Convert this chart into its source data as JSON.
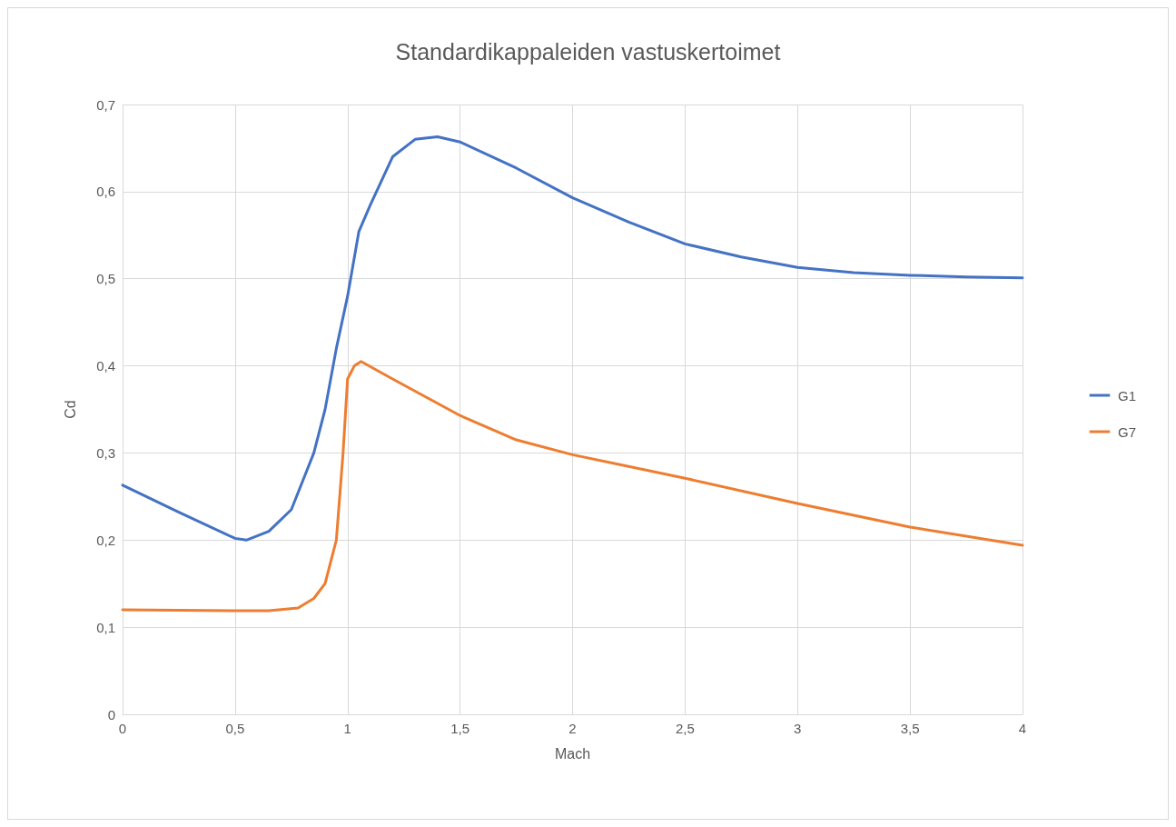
{
  "chart_data": {
    "type": "line",
    "title": "Standardikappaleiden vastuskertoimet",
    "xlabel": "Mach",
    "ylabel": "Cd",
    "xlim": [
      0,
      4
    ],
    "xticks": [
      {
        "value": 0,
        "label": "0"
      },
      {
        "value": 0.5,
        "label": "0,5"
      },
      {
        "value": 1,
        "label": "1"
      },
      {
        "value": 1.5,
        "label": "1,5"
      },
      {
        "value": 2,
        "label": "2"
      },
      {
        "value": 2.5,
        "label": "2,5"
      },
      {
        "value": 3,
        "label": "3"
      },
      {
        "value": 3.5,
        "label": "3,5"
      },
      {
        "value": 4,
        "label": "4"
      }
    ],
    "ylim": [
      0,
      0.7
    ],
    "yticks": [
      {
        "value": 0,
        "label": "0"
      },
      {
        "value": 0.1,
        "label": "0,1"
      },
      {
        "value": 0.2,
        "label": "0,2"
      },
      {
        "value": 0.3,
        "label": "0,3"
      },
      {
        "value": 0.4,
        "label": "0,4"
      },
      {
        "value": 0.5,
        "label": "0,5"
      },
      {
        "value": 0.6,
        "label": "0,6"
      },
      {
        "value": 0.7,
        "label": "0,7"
      }
    ],
    "grid": true,
    "legend": "right",
    "marker": "none",
    "line_style": "solid",
    "series": [
      {
        "name": "G1",
        "color": "#4472c4",
        "x": [
          0,
          0.25,
          0.5,
          0.55,
          0.65,
          0.75,
          0.85,
          0.9,
          0.95,
          1.0,
          1.05,
          1.1,
          1.2,
          1.3,
          1.4,
          1.5,
          1.75,
          2,
          2.25,
          2.5,
          2.75,
          3,
          3.25,
          3.5,
          3.75,
          4
        ],
        "values": [
          0.263,
          0.232,
          0.202,
          0.2,
          0.21,
          0.235,
          0.3,
          0.35,
          0.42,
          0.48,
          0.554,
          0.584,
          0.64,
          0.66,
          0.663,
          0.657,
          0.627,
          0.593,
          0.565,
          0.54,
          0.525,
          0.513,
          0.507,
          0.504,
          0.502,
          0.501
        ]
      },
      {
        "name": "G7",
        "color": "#ed7d31",
        "x": [
          0,
          0.5,
          0.65,
          0.78,
          0.85,
          0.9,
          0.95,
          0.98,
          1.0,
          1.03,
          1.06,
          1.2,
          1.5,
          1.75,
          2,
          2.5,
          3,
          3.5,
          4
        ],
        "values": [
          0.12,
          0.119,
          0.119,
          0.122,
          0.133,
          0.15,
          0.2,
          0.3,
          0.385,
          0.4,
          0.405,
          0.385,
          0.343,
          0.315,
          0.298,
          0.271,
          0.242,
          0.215,
          0.194
        ]
      }
    ]
  }
}
